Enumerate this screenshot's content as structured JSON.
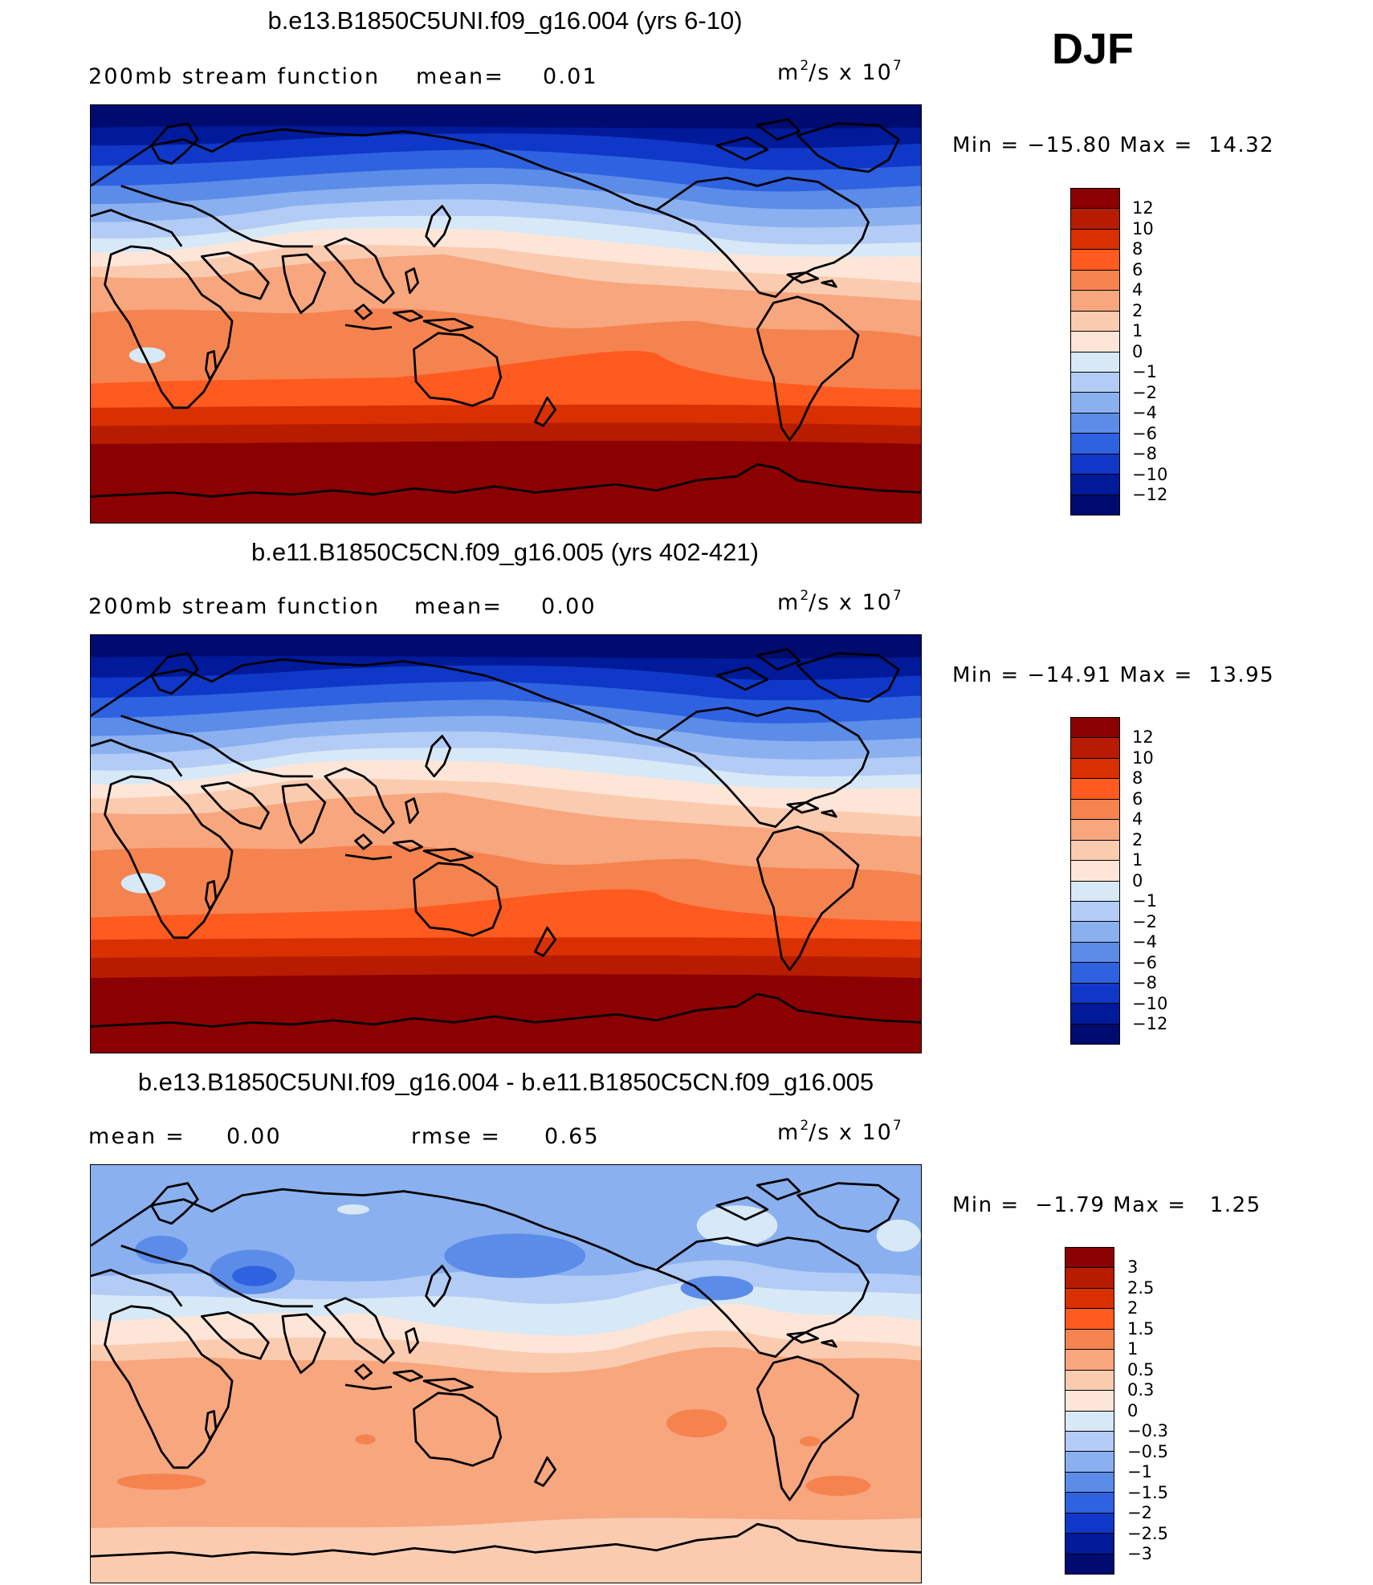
{
  "season": "DJF",
  "panels": [
    {
      "title": "b.e13.B1850C5UNI.f09_g16.004 (yrs 6-10)",
      "variable": "200mb stream function",
      "mean_label": "mean=",
      "mean_value": "0.01",
      "units_prefix": "m",
      "units_exp1": "2",
      "units_mid": "/s x 10",
      "units_exp2": "7",
      "min_label": "Min =",
      "min_value": "−15.80",
      "max_label": "Max =",
      "max_value": "14.32",
      "colorbar": {
        "labels": [
          "12",
          "10",
          "8",
          "6",
          "4",
          "2",
          "1",
          "0",
          "−1",
          "−2",
          "−4",
          "−6",
          "−8",
          "−10",
          "−12"
        ],
        "colors": [
          "#8b0000",
          "#b71c00",
          "#d83000",
          "#ff5a1f",
          "#f5834f",
          "#f7a67e",
          "#fbcbb0",
          "#fde6d8",
          "#d7e8f7",
          "#b3ccf5",
          "#8ab0f0",
          "#5b8ce8",
          "#2f62e0",
          "#0f38c8",
          "#001a9a",
          "#000b70"
        ]
      }
    },
    {
      "title": "b.e11.B1850C5CN.f09_g16.005 (yrs 402-421)",
      "variable": "200mb stream function",
      "mean_label": "mean=",
      "mean_value": "0.00",
      "units_prefix": "m",
      "units_exp1": "2",
      "units_mid": "/s x 10",
      "units_exp2": "7",
      "min_label": "Min =",
      "min_value": "−14.91",
      "max_label": "Max =",
      "max_value": "13.95",
      "colorbar": {
        "labels": [
          "12",
          "10",
          "8",
          "6",
          "4",
          "2",
          "1",
          "0",
          "−1",
          "−2",
          "−4",
          "−6",
          "−8",
          "−10",
          "−12"
        ],
        "colors": [
          "#8b0000",
          "#b71c00",
          "#d83000",
          "#ff5a1f",
          "#f5834f",
          "#f7a67e",
          "#fbcbb0",
          "#fde6d8",
          "#d7e8f7",
          "#b3ccf5",
          "#8ab0f0",
          "#5b8ce8",
          "#2f62e0",
          "#0f38c8",
          "#001a9a",
          "#000b70"
        ]
      }
    },
    {
      "title": "b.e13.B1850C5UNI.f09_g16.004 - b.e11.B1850C5CN.f09_g16.005",
      "mean_label": "mean =",
      "mean_value": "0.00",
      "rmse_label": "rmse =",
      "rmse_value": "0.65",
      "units_prefix": "m",
      "units_exp1": "2",
      "units_mid": "/s x 10",
      "units_exp2": "7",
      "min_label": "Min =",
      "min_value": "−1.79",
      "max_label": "Max =",
      "max_value": "1.25",
      "colorbar": {
        "labels": [
          "3",
          "2.5",
          "2",
          "1.5",
          "1",
          "0.5",
          "0.3",
          "0",
          "−0.3",
          "−0.5",
          "−1",
          "−1.5",
          "−2",
          "−2.5",
          "−3"
        ],
        "colors": [
          "#8b0000",
          "#b71c00",
          "#d83000",
          "#ff5a1f",
          "#f5834f",
          "#f7a67e",
          "#fbcbb0",
          "#fde6d8",
          "#d7e8f7",
          "#b3ccf5",
          "#8ab0f0",
          "#5b8ce8",
          "#2f62e0",
          "#0f38c8",
          "#001a9a",
          "#000b70"
        ]
      }
    }
  ]
}
